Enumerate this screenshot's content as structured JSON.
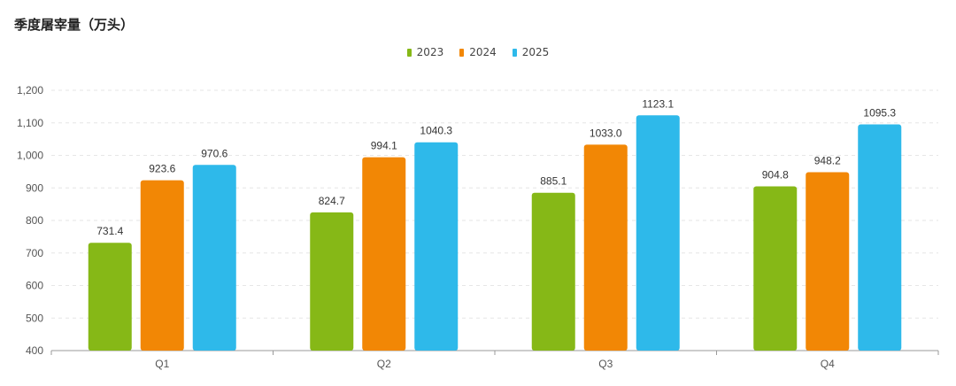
{
  "chart_data": {
    "type": "bar",
    "title": "季度屠宰量（万头）",
    "categories": [
      "Q1",
      "Q2",
      "Q3",
      "Q4"
    ],
    "series": [
      {
        "name": "2023",
        "color": "#86b817",
        "values": [
          731.4,
          824.7,
          885.1,
          904.8
        ]
      },
      {
        "name": "2024",
        "color": "#f28705",
        "values": [
          923.6,
          994.1,
          1033.0,
          948.2
        ]
      },
      {
        "name": "2025",
        "color": "#2eb9ea",
        "values": [
          970.6,
          1040.3,
          1123.1,
          1095.3
        ]
      }
    ],
    "ylim": [
      400,
      1200
    ],
    "yticks": [
      "400",
      "500",
      "600",
      "700",
      "800",
      "900",
      "1,000",
      "1,100",
      "1,200"
    ],
    "grid": true,
    "legend_position": "top-center"
  }
}
